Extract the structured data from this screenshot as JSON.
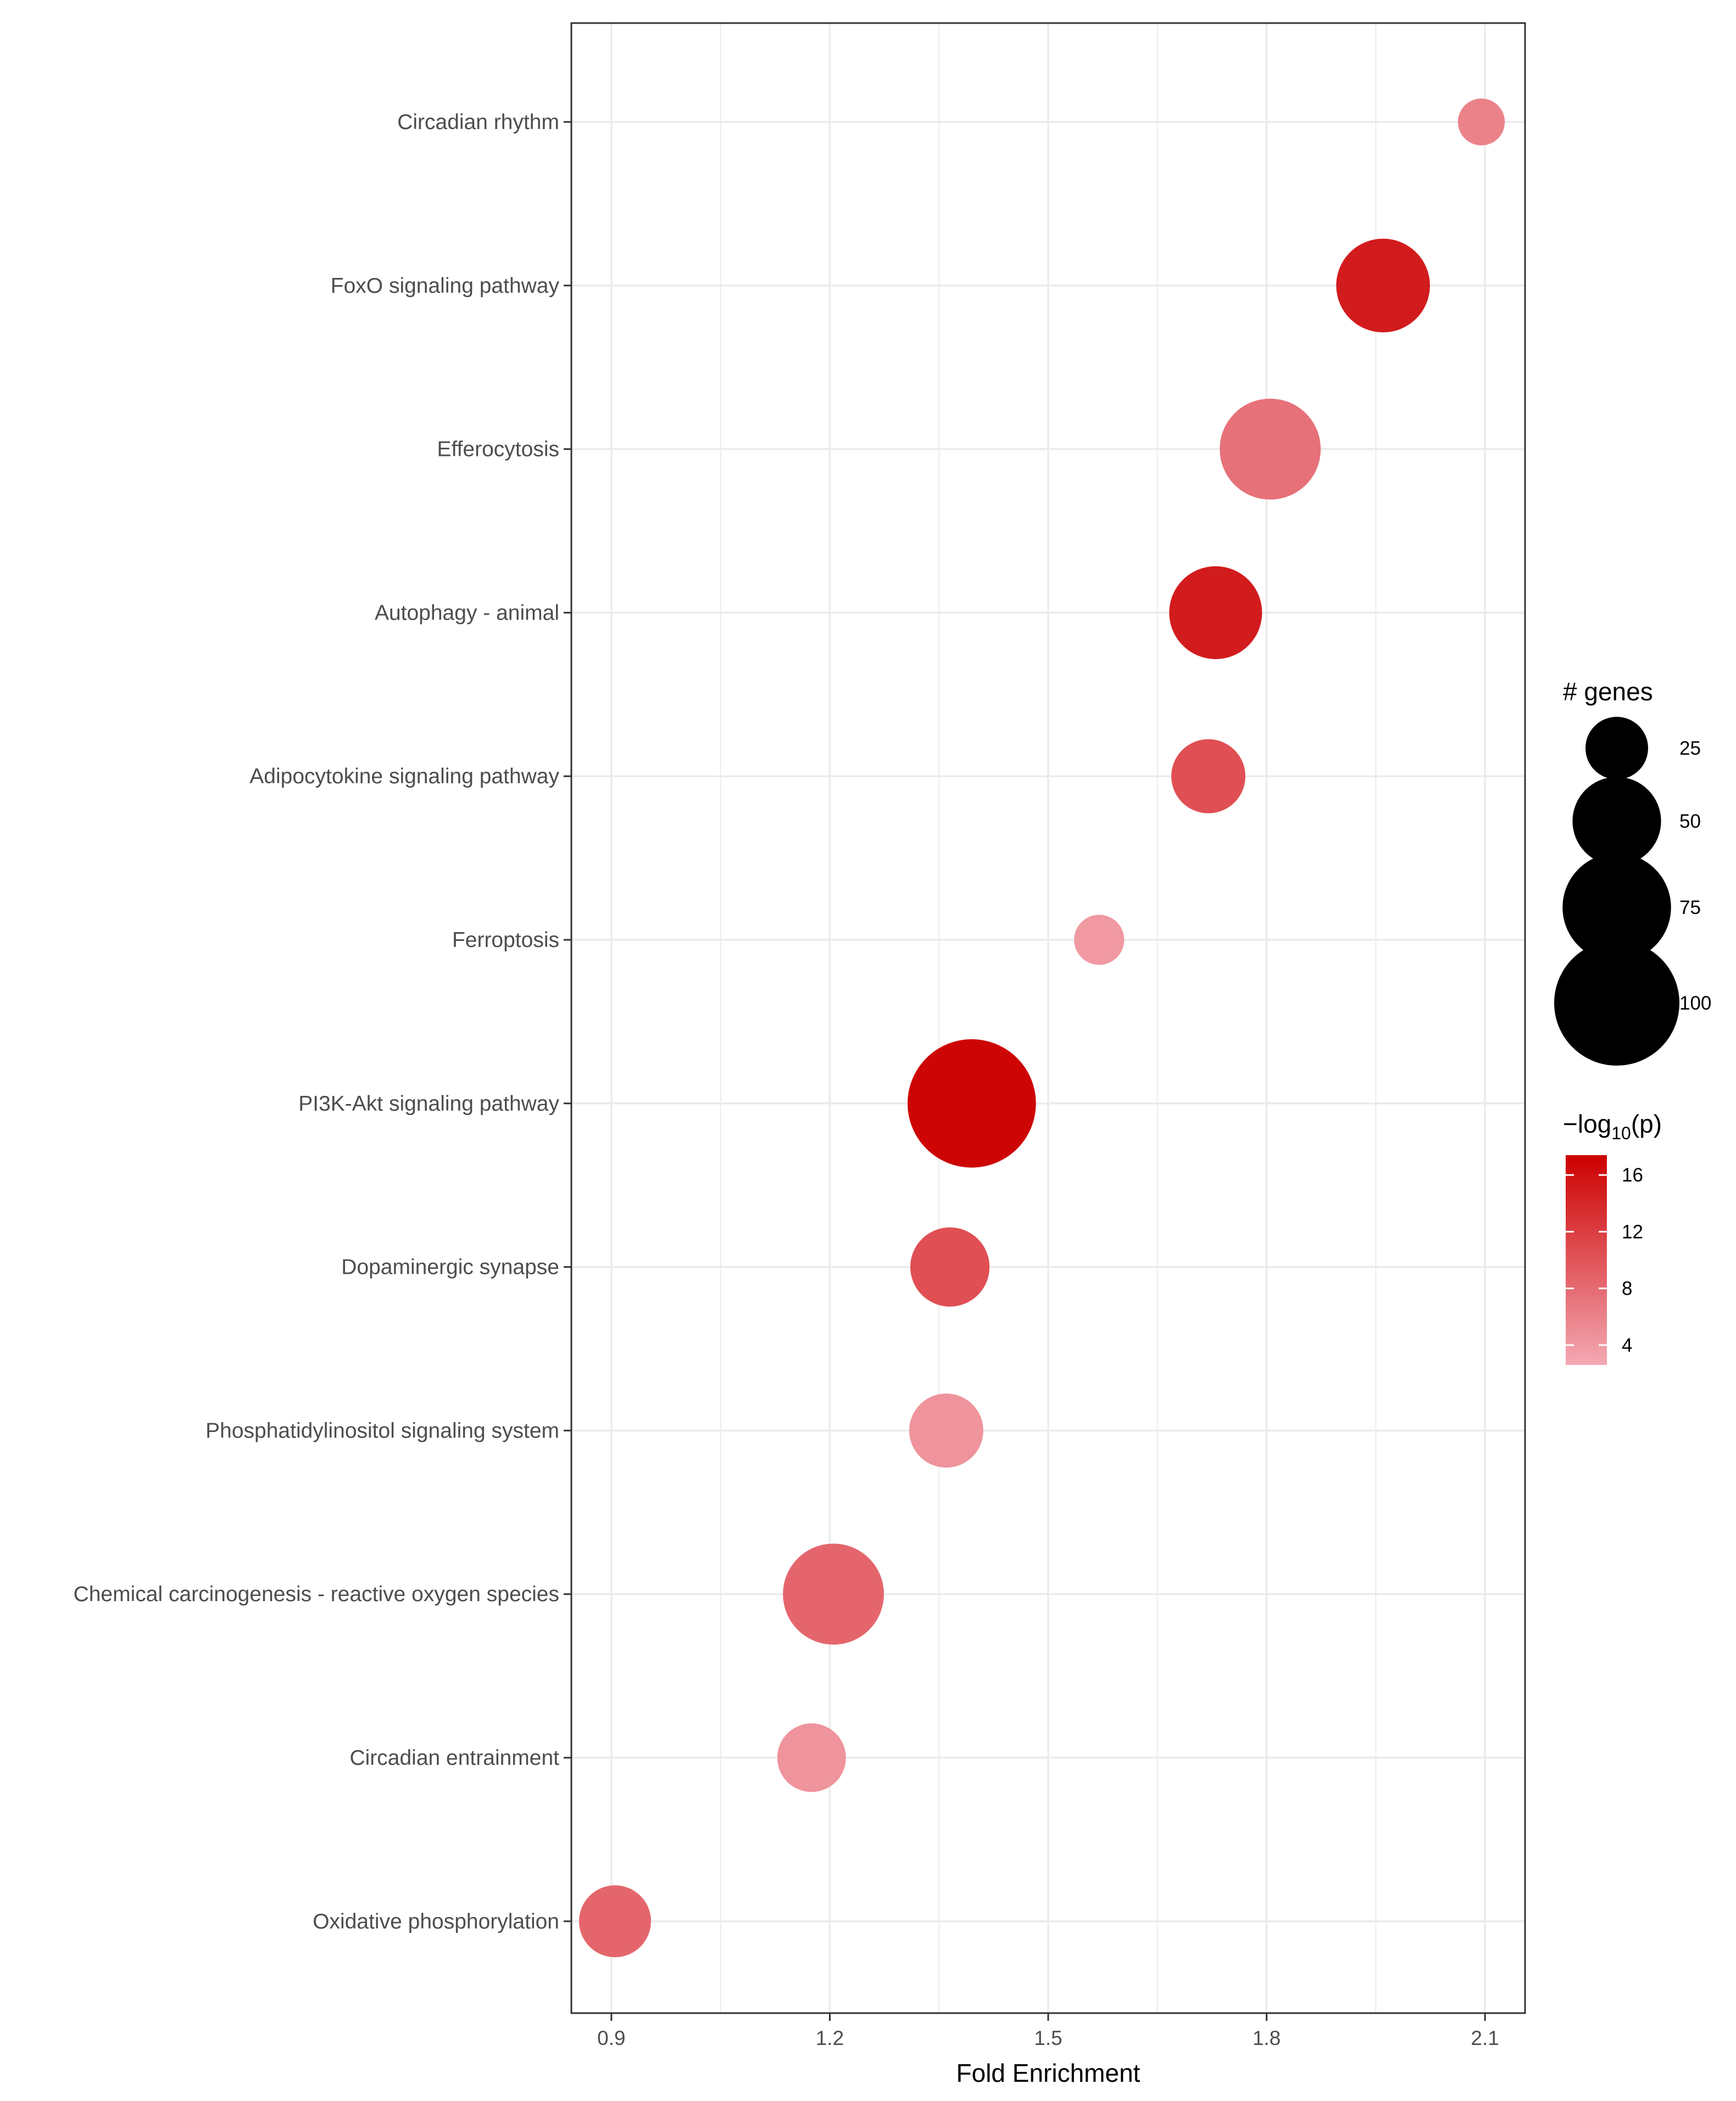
{
  "chart_data": {
    "type": "scatter",
    "title": "",
    "xlabel": "Fold Enrichment",
    "ylabel": "",
    "xlim": [
      0.845,
      2.155
    ],
    "xticks": [
      0.9,
      1.2,
      1.5,
      1.8,
      2.1
    ],
    "xtick_labels": [
      "0.9",
      "1.2",
      "1.5",
      "1.8",
      "2.1"
    ],
    "grid": true,
    "categories": [
      "Circadian rhythm",
      "FoxO signaling pathway",
      "Efferocytosis",
      "Autophagy - animal",
      "Adipocytokine signaling pathway",
      "Ferroptosis",
      "PI3K-Akt signaling pathway",
      "Dopaminergic synapse",
      "Phosphatidylinositol signaling system",
      "Chemical carcinogenesis - reactive oxygen species",
      "Circadian entrainment",
      "Oxidative phosphorylation"
    ],
    "fold_enrichment": [
      2.095,
      1.96,
      1.805,
      1.73,
      1.72,
      1.57,
      1.395,
      1.365,
      1.36,
      1.205,
      1.175,
      0.905
    ],
    "genes": [
      14,
      56,
      65,
      55,
      35,
      16,
      105,
      40,
      35,
      65,
      30,
      33
    ],
    "neg_log10_p": [
      6,
      15,
      7.5,
      15,
      10.5,
      4,
      17,
      10.5,
      4.5,
      8.5,
      4.5,
      8.5
    ],
    "size_legend": {
      "title": "# genes",
      "breaks": [
        25,
        50,
        75,
        100
      ],
      "labels": [
        "25",
        "50",
        "75",
        "100"
      ]
    },
    "color_legend": {
      "title_prefix": "−log",
      "title_sub": "10",
      "title_suffix": "(p)",
      "range": [
        2.6,
        17.4
      ],
      "breaks": [
        4,
        8,
        12,
        16
      ],
      "labels": [
        "4",
        "8",
        "12",
        "16"
      ],
      "low_color": "#F4A9B3",
      "high_color": "#CC0000"
    },
    "colors": {
      "grid": "#EBEBEB",
      "panel_border": "#333333",
      "tick": "#333333"
    }
  }
}
